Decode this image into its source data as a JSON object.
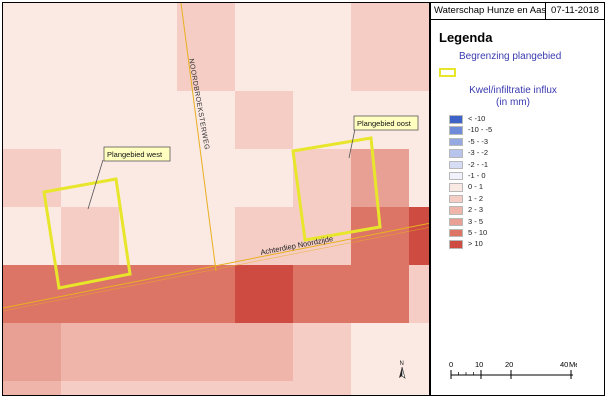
{
  "header": {
    "organization": "Waterschap Hunze en Aas",
    "date": "07-11-2018"
  },
  "legend": {
    "title": "Legenda",
    "boundary_label": "Begrenzing plangebied",
    "boundary_color": "#e8e62a",
    "influx_title_line1": "Kwel/infiltratie influx",
    "influx_title_line2": "(in mm)",
    "items": [
      {
        "label": "< -10",
        "color": "#3e63c8"
      },
      {
        "label": "-10 - -5",
        "color": "#6e8ad8"
      },
      {
        "label": "-5 - -3",
        "color": "#97a9e2"
      },
      {
        "label": "-3 - -2",
        "color": "#b9c4ec"
      },
      {
        "label": "-2 - -1",
        "color": "#d6dcf4"
      },
      {
        "label": "-1 - 0",
        "color": "#f0f1fb"
      },
      {
        "label": "0 - 1",
        "color": "#fbe9e4"
      },
      {
        "label": "1 - 2",
        "color": "#f5cdc5"
      },
      {
        "label": "2 - 3",
        "color": "#efb5aa"
      },
      {
        "label": "3 - 5",
        "color": "#e8a095"
      },
      {
        "label": "5 - 10",
        "color": "#dd7566"
      },
      {
        "label": "> 10",
        "color": "#cd4b40"
      }
    ]
  },
  "map": {
    "labels": {
      "plangebied_west": "Plangebied west",
      "plangebied_oost": "Plangebied oost",
      "road_noordbroeksterweg": "NOORDBROEKSTERWEG",
      "water_achterdiep": "Achterdiep Noordzijde"
    },
    "north_letter": "N",
    "colors": {
      "line_feature": "#e8b020",
      "boundary": "#e8e62a"
    }
  },
  "scalebar": {
    "ticks": [
      "0",
      "10",
      "20",
      "40"
    ],
    "unit": "Meters"
  }
}
